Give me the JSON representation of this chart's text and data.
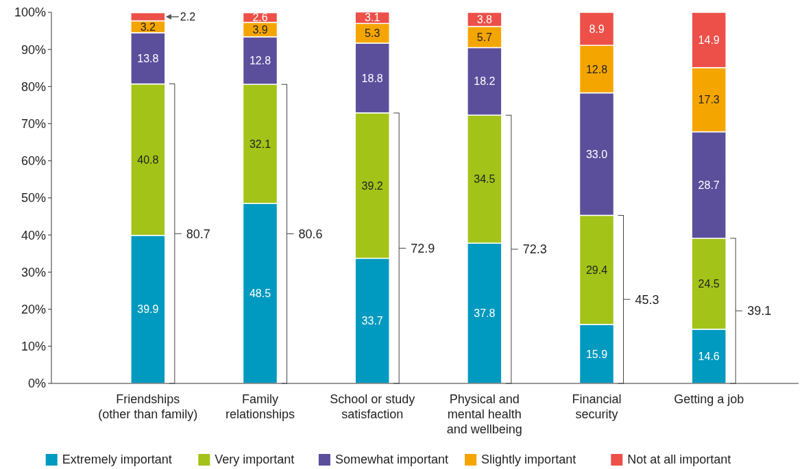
{
  "chart_data": {
    "type": "bar",
    "stacked": true,
    "data_labels": true,
    "legend": "bottom",
    "grid": false,
    "categories": [
      "Friendships\n(other than family)",
      "Family\nrelationships",
      "School or study\nsatisfaction",
      "Physical and\nmental health\nand wellbeing",
      "Financial\nsecurity",
      "Getting a job"
    ],
    "ylim": [
      0,
      100
    ],
    "yticks": [
      {
        "value": 0,
        "label": "0%"
      },
      {
        "value": 10,
        "label": "10%"
      },
      {
        "value": 20,
        "label": "20%"
      },
      {
        "value": 30,
        "label": "30%"
      },
      {
        "value": 40,
        "label": "40%"
      },
      {
        "value": 50,
        "label": "50%"
      },
      {
        "value": 60,
        "label": "60%"
      },
      {
        "value": 70,
        "label": "70%"
      },
      {
        "value": 80,
        "label": "80%"
      },
      {
        "value": 90,
        "label": "90%"
      },
      {
        "value": 100,
        "label": "100%"
      }
    ],
    "series": [
      {
        "name": "Extremely important",
        "color": "#0099bf",
        "values": [
          39.9,
          48.5,
          33.7,
          37.8,
          15.9,
          14.6
        ]
      },
      {
        "name": "Very important",
        "color": "#a3c319",
        "values": [
          40.8,
          32.1,
          39.2,
          34.5,
          29.4,
          24.5
        ]
      },
      {
        "name": "Somewhat important",
        "color": "#5b4f9c",
        "values": [
          13.8,
          12.8,
          18.8,
          18.2,
          33.0,
          28.7
        ],
        "value_labels": [
          "13.8",
          "12.8",
          "18.8",
          "18.2",
          "33.0",
          "28.7"
        ]
      },
      {
        "name": "Slightly important",
        "color": "#f5a500",
        "values": [
          3.2,
          3.9,
          5.3,
          5.7,
          12.8,
          17.3
        ]
      },
      {
        "name": "Not at all important",
        "color": "#ec5049",
        "values": [
          2.2,
          2.6,
          3.1,
          3.8,
          8.9,
          14.9
        ]
      }
    ],
    "annotations": [
      "80.7",
      "80.6",
      "72.9",
      "72.3",
      "45.3",
      "39.1"
    ]
  }
}
